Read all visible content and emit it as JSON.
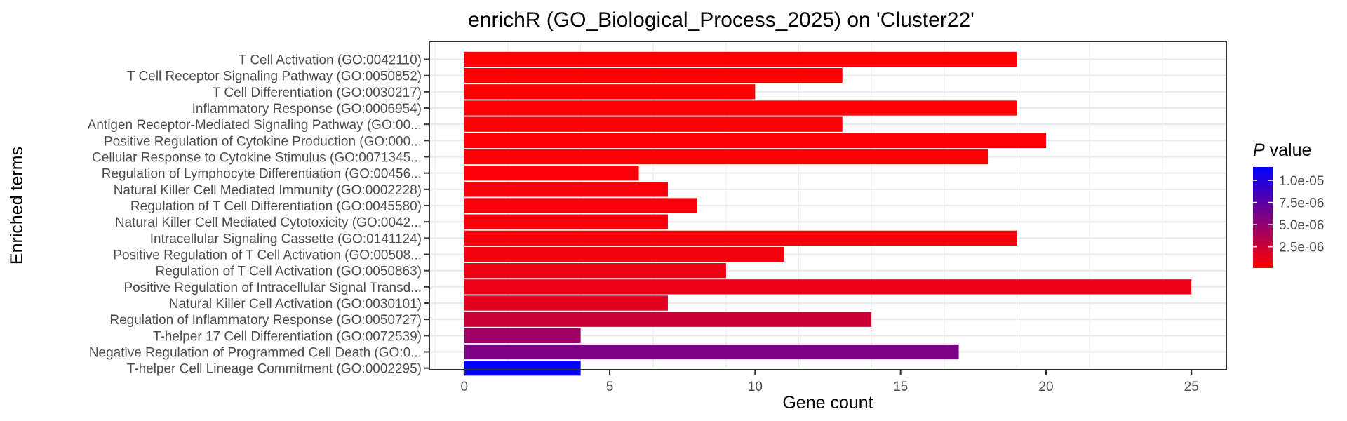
{
  "chart_data": {
    "type": "bar",
    "orientation": "horizontal",
    "title": "enrichR (GO_Biological_Process_2025) on 'Cluster22'",
    "xlabel": "Gene count",
    "ylabel": "Enriched terms",
    "xlim": [
      -1.2,
      26.2
    ],
    "xticks": [
      0,
      5,
      10,
      15,
      20,
      25
    ],
    "grid": true,
    "legend": {
      "title_italic": "P",
      "title_rest": " value",
      "placement": "right",
      "low_color": "#ff0000",
      "high_color": "#0000ff",
      "range": [
        1e-07,
        1.15e-05
      ],
      "ticks": [
        {
          "value": 1e-05,
          "label": "1.0e-05"
        },
        {
          "value": 7.5e-06,
          "label": "7.5e-06"
        },
        {
          "value": 5e-06,
          "label": "5.0e-06"
        },
        {
          "value": 2.5e-06,
          "label": "2.5e-06"
        }
      ]
    },
    "categories": [
      "T Cell Activation (GO:0042110)",
      "T Cell Receptor Signaling Pathway (GO:0050852)",
      "T Cell Differentiation (GO:0030217)",
      "Inflammatory Response (GO:0006954)",
      "Antigen Receptor-Mediated Signaling Pathway (GO:00...",
      "Positive Regulation of Cytokine Production (GO:000...",
      "Cellular Response to Cytokine Stimulus (GO:0071345...",
      "Regulation of Lymphocyte Differentiation (GO:00456...",
      "Natural Killer Cell Mediated Immunity (GO:0002228)",
      "Regulation of T Cell Differentiation (GO:0045580)",
      "Natural Killer Cell Mediated Cytotoxicity (GO:0042...",
      "Intracellular Signaling Cassette (GO:0141124)",
      "Positive Regulation of T Cell Activation (GO:00508...",
      "Regulation of T Cell Activation (GO:0050863)",
      "Positive Regulation of Intracellular Signal Transd...",
      "Natural Killer Cell Activation (GO:0030101)",
      "Regulation of Inflammatory Response (GO:0050727)",
      "T-helper 17 Cell Differentiation (GO:0072539)",
      "Negative Regulation of Programmed Cell Death (GO:0...",
      "T-helper Cell Lineage Commitment (GO:0002295)"
    ],
    "values": [
      19,
      13,
      10,
      19,
      13,
      20,
      18,
      6,
      7,
      8,
      7,
      19,
      11,
      9,
      25,
      7,
      14,
      4,
      17,
      4
    ],
    "p_values": [
      1e-07,
      1e-07,
      1e-07,
      2e-07,
      2e-07,
      2e-07,
      2e-07,
      3e-07,
      4e-07,
      4e-07,
      5e-07,
      6e-07,
      7e-07,
      8e-07,
      1e-06,
      1.5e-06,
      2.5e-06,
      4.5e-06,
      6e-06,
      1.15e-05
    ]
  }
}
